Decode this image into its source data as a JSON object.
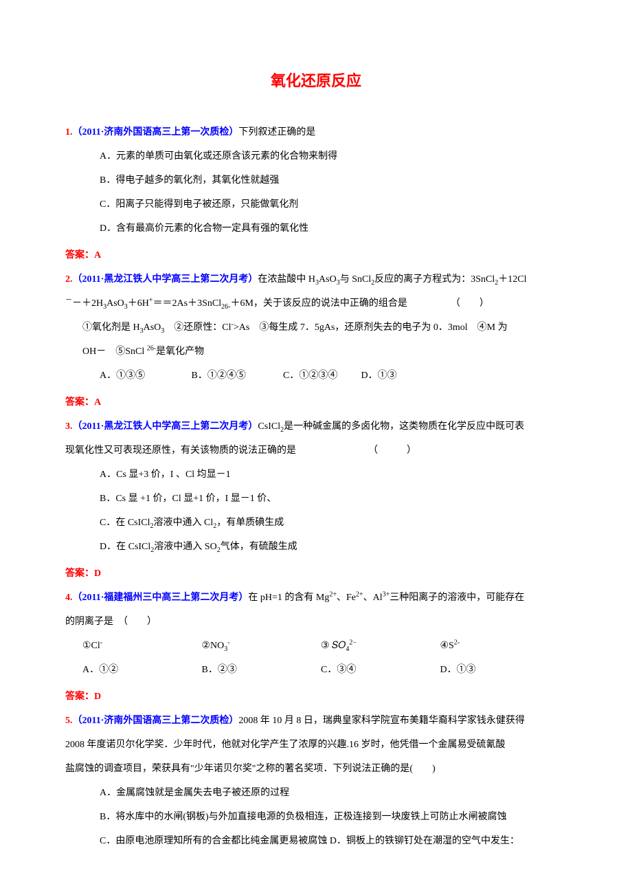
{
  "page_title": "氧化还原反应",
  "colors": {
    "title": "#ff0000",
    "source": "#0000ff",
    "answer": "#ff0000",
    "text": "#000000",
    "background": "#ffffff"
  },
  "typography": {
    "title_fontsize": 22,
    "body_fontsize": 14,
    "title_font": "SimHei",
    "body_font": "SimSun"
  },
  "q1": {
    "num": "1.",
    "source": "（2011·济南外国语高三上第一次质检）",
    "stem": "下列叙述正确的是",
    "optA": "A．元素的单质可由氧化或还原含该元素的化合物来制得",
    "optB": "B．得电子越多的氧化剂，其氧化性就越强",
    "optC": "C．阳离子只能得到电子被还原，只能做氧化剂",
    "optD": "D．含有最高价元素的化合物一定具有强的氧化性",
    "answer": "答案：A"
  },
  "q2": {
    "num": "2.",
    "source": "（2011·黑龙江铁人中学高三上第二次月考）",
    "stem_pre": "在浓盐酸中 H",
    "stem_mid": "AsO",
    "stem_after": "与 SnCl",
    "stem_tail": "反应的离子方程式为：3SnCl",
    "stem_line2_pre": "＋12Cl",
    "stem_line2_mid": "－＋2H",
    "stem_line2_aso": "AsO",
    "stem_line2_h": "＋6H",
    "stem_line2_eq": "＝＝2As＋3SnCl",
    "stem_line2_end": "＋6M，关于该反应的说法中正确的组合是　　　　　（　　）",
    "line3_pre": "①氧化剂是 H",
    "line3_aso": "AsO",
    "line3_mid": "　②还原性：Cl",
    "line3_gt": ">As　③每生成 7．5gAs，还原剂失去的电子为 0．3mol　④M 为",
    "line4_pre": "OH－　⑤SnCl ",
    "line4_end": "是氧化产物",
    "optA": "A．①③⑤",
    "optB": "B．①②④⑤",
    "optC": "C．①②③④",
    "optD": "D．①③",
    "answer": "答案：A"
  },
  "q3": {
    "num": "3.",
    "source": "（2011·黑龙江铁人中学高三上第二次月考）",
    "stem_pre": "CsICl",
    "stem_mid": "是一种碱金属的多卤化物，这类物质在化学反应中既可表",
    "stem_line2": "现氧化性又可表现还原性，有关该物质的说法正确的是　　　　　　　　（　　　）",
    "optA": "A．Cs 显+3 价，I 、Cl 均显－1",
    "optB": "B．Cs 显 +1 价，Cl 显+1 价，I 显－1 价、",
    "optC_pre": "C．在 CsICl",
    "optC_mid": "溶液中通入 Cl",
    "optC_end": "，有单质碘生成",
    "optD_pre": "D．在 CsICl",
    "optD_mid": "溶液中通入 SO",
    "optD_end": "气体，有硫酸生成",
    "answer": "答案：D"
  },
  "q4": {
    "num": "4.",
    "source": "（2011·福建福州三中高三上第二次月考）",
    "stem_pre": "在 pH=1 的含有 Mg",
    "stem_mid1": "、Fe",
    "stem_mid2": "、Al",
    "stem_end": "三种阳离子的溶液中，可能存在",
    "stem_line2": "的阴离子是　（　　）",
    "opt1_pre": "①Cl",
    "opt2_pre": "②NO",
    "opt3_pre": "③ 𝑆𝑂",
    "opt4_pre": "④S",
    "optA": "A．①②",
    "optB": "B．②③",
    "optC": "C．③④",
    "optD": "D．①③",
    "answer": "答案：D"
  },
  "q5": {
    "num": "5.",
    "source": "（2011·济南外国语高三上第二次质检）",
    "stem": "2008 年 10 月 8 日，瑞典皇家科学院宣布美籍华裔科学家钱永健获得",
    "stem_line2": "2008 年度诺贝尔化学奖．少年时代，他就对化学产生了浓厚的兴趣.16 岁时，他凭借一个金属易受硫氰酸",
    "stem_line3": "盐腐蚀的调查项目，荣获具有\"少年诺贝尔奖\"之称的著名奖项．下列说法正确的是(　　)",
    "optA": "A．金属腐蚀就是金属失去电子被还原的过程",
    "optB": "B．将水库中的水闸(钢板)与外加直接电源的负极相连，正极连接到一块废铁上可防止水闸被腐蚀",
    "optC": "C．由原电池原理知所有的合金都比纯金属更易被腐蚀 D．铜板上的铁铆钉处在潮湿的空气中发生："
  }
}
